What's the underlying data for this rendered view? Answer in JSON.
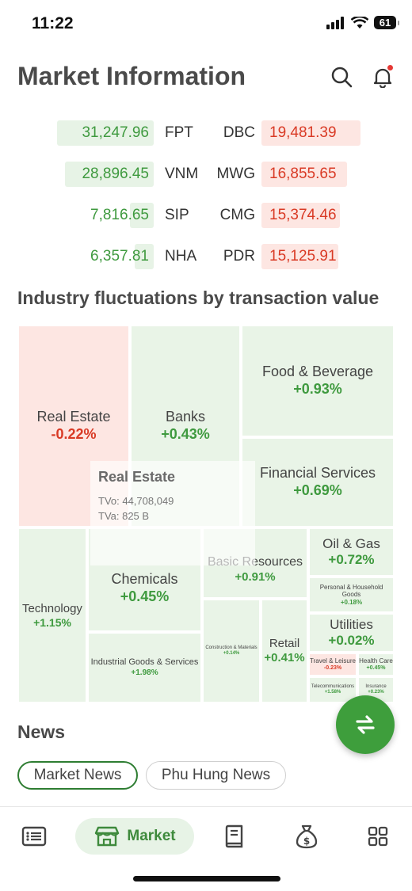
{
  "status_bar": {
    "time": "11:22",
    "battery": "61"
  },
  "header": {
    "title": "Market Information",
    "icons": [
      "search-icon",
      "bell-icon"
    ]
  },
  "tickers": [
    {
      "left_value": "31,247.96",
      "left_symbol": "FPT",
      "right_symbol": "DBC",
      "right_value": "19,481.39"
    },
    {
      "left_value": "28,896.45",
      "left_symbol": "VNM",
      "right_symbol": "MWG",
      "right_value": "16,855.65"
    },
    {
      "left_value": "7,816.65",
      "left_symbol": "SIP",
      "right_symbol": "CMG",
      "right_value": "15,374.46"
    },
    {
      "left_value": "6,357.81",
      "left_symbol": "NHA",
      "right_symbol": "PDR",
      "right_value": "15,125.91"
    }
  ],
  "industry": {
    "title": "Industry fluctuations by transaction value",
    "tiles": [
      {
        "name": "Real Estate",
        "change": "-0.22%"
      },
      {
        "name": "Banks",
        "change": "+0.43%"
      },
      {
        "name": "Food & Beverage",
        "change": "+0.93%"
      },
      {
        "name": "Financial Services",
        "change": "+0.69%"
      },
      {
        "name": "Technology",
        "change": "+1.15%"
      },
      {
        "name": "Chemicals",
        "change": "+0.45%"
      },
      {
        "name": "Basic Resources",
        "change": "+0.91%"
      },
      {
        "name": "Oil & Gas",
        "change": "+0.72%"
      },
      {
        "name": "Personal & Household Goods",
        "change": "+0.18%"
      },
      {
        "name": "Utilities",
        "change": "+0.02%"
      },
      {
        "name": "Industrial Goods & Services",
        "change": "+1.98%"
      },
      {
        "name": "Construction & Materials",
        "change": "+0.14%"
      },
      {
        "name": "Retail",
        "change": "+0.41%"
      },
      {
        "name": "Travel & Leisure",
        "change": "-0.23%"
      },
      {
        "name": "Health Care",
        "change": "+0.45%"
      },
      {
        "name": "Telecommunications",
        "change": "+1.58%"
      },
      {
        "name": "Insurance",
        "change": "+0.23%"
      }
    ],
    "tooltip": {
      "title": "Real Estate",
      "tvo": "TVo: 44,708,049",
      "tva": "TVa: 825 B"
    }
  },
  "news": {
    "title": "News",
    "tabs": [
      {
        "label": "Market News"
      },
      {
        "label": "Phu Hung News"
      }
    ]
  },
  "bottom_nav": {
    "items": [
      {
        "icon": "list-icon"
      },
      {
        "icon": "market-store-icon",
        "label": "Market"
      },
      {
        "icon": "book-icon"
      },
      {
        "icon": "money-bag-icon"
      },
      {
        "icon": "grid-icon"
      }
    ]
  },
  "colors": {
    "up": "#3f9a3f",
    "down": "#d93a25",
    "up_bg": "#e9f4e7",
    "down_bg": "#fde6e2",
    "accent": "#3e9e3c"
  }
}
